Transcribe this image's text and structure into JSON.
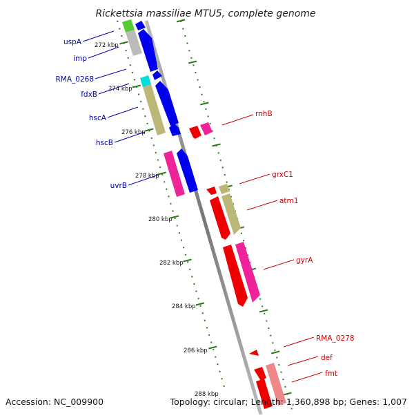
{
  "title": "Rickettsia massiliae MTU5, complete genome",
  "footer": {
    "accession": "Accession: NC_009900",
    "summary": "Topology: circular; Length: 1,360,898 bp; Genes: 1,007"
  },
  "colors": {
    "axis": "#888888",
    "tick": "#2a7a1a",
    "left_label": "#0000aa",
    "right_label": "#cc0000"
  },
  "kbp_ticks": [
    "272 kbp",
    "274 kbp",
    "276 kbp",
    "278 kbp",
    "280 kbp",
    "282 kbp",
    "284 kbp",
    "286 kbp",
    "288 kbp"
  ],
  "left_genes": [
    "uspA",
    "imp",
    "RMA_0268",
    "fdxB",
    "hscA",
    "hscB",
    "uvrB"
  ],
  "right_genes": [
    "rnhB",
    "grxC1",
    "atm1",
    "gyrA",
    "RMA_0278",
    "def",
    "fmt"
  ],
  "feature_colors": {
    "blue": "#0000ee",
    "green": "#55cc33",
    "grey": "#bbbbbb",
    "cyan": "#00dddd",
    "olive": "#bbb877",
    "pink": "#ee2299",
    "red": "#ee0000",
    "salmon": "#ee8888"
  }
}
